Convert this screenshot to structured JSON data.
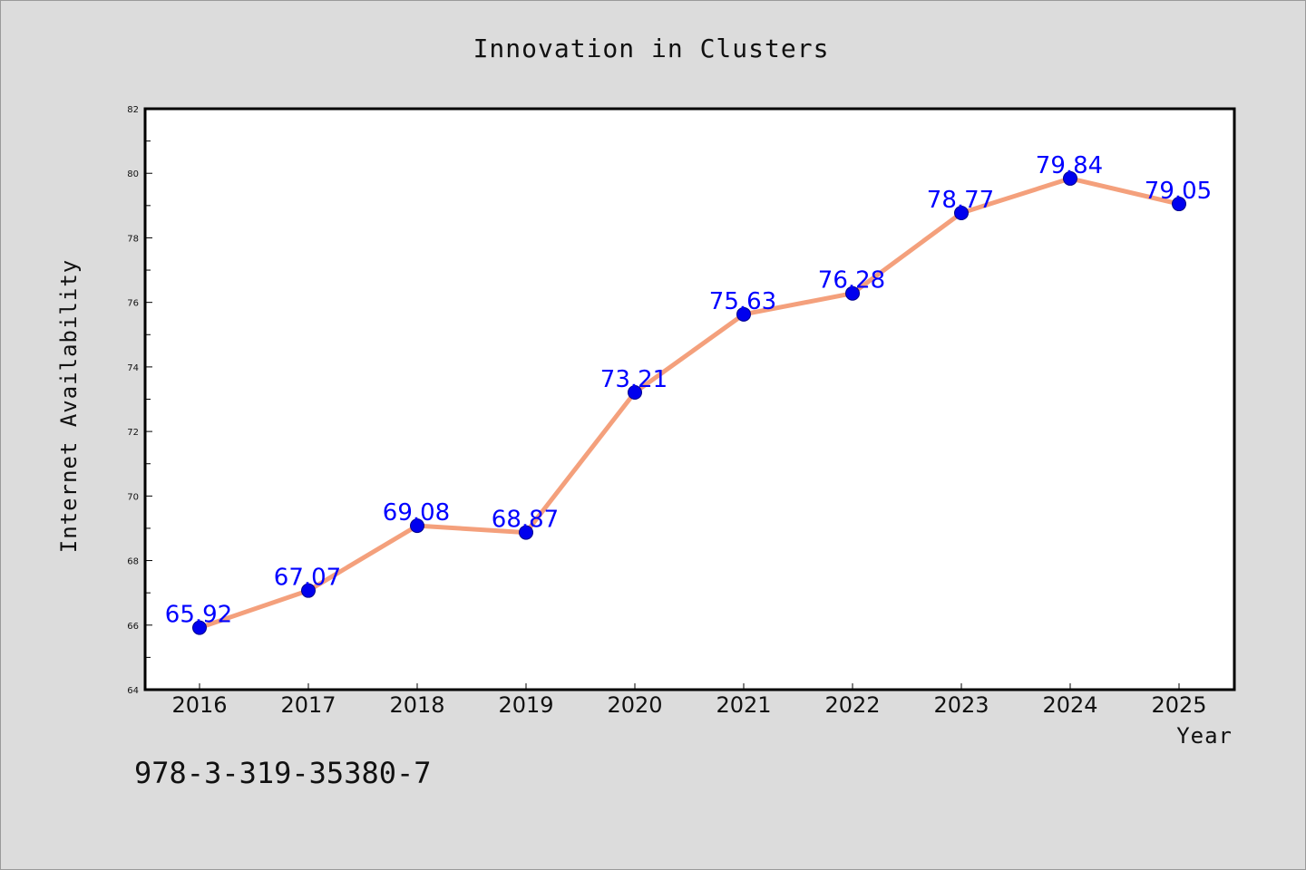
{
  "chart_data": {
    "type": "line",
    "title": "Innovation in Clusters",
    "xlabel": "Year",
    "ylabel": "Internet Availability",
    "categories": [
      "2016",
      "2017",
      "2018",
      "2019",
      "2020",
      "2021",
      "2022",
      "2023",
      "2024",
      "2025"
    ],
    "series": [
      {
        "values": [
          65.92,
          67.07,
          69.08,
          68.87,
          73.21,
          75.63,
          76.28,
          78.77,
          79.84,
          79.05
        ]
      }
    ],
    "data_labels": [
      "65.92",
      "67.07",
      "69.08",
      "68.87",
      "73.21",
      "75.63",
      "76.28",
      "78.77",
      "79.84",
      "79.05"
    ],
    "ylim": [
      64,
      82
    ],
    "y_ticks": [
      "64",
      "66",
      "68",
      "70",
      "72",
      "74",
      "76",
      "78",
      "80",
      "82"
    ],
    "grid": false,
    "line_color": "#f4a07c",
    "marker_color": "#0000ee",
    "label_color": "#0000ff",
    "background_color": "#dcdcdc",
    "plot_background": "#ffffff"
  },
  "footer": {
    "isbn": "978-3-319-35380-7"
  }
}
